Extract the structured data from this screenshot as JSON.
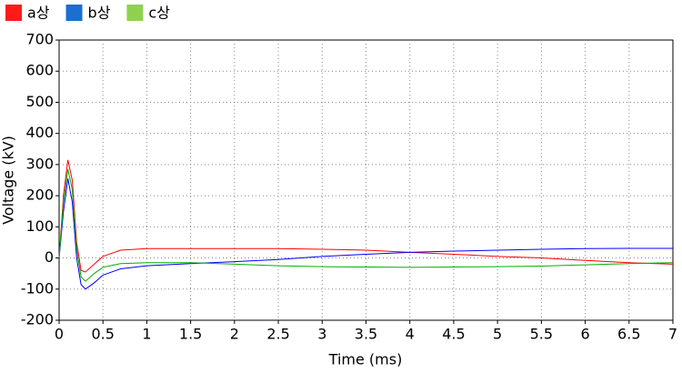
{
  "chart_data": {
    "type": "line",
    "x_label": "Time (ms)",
    "y_label": "Voltage (kV)",
    "x": [
      0,
      0.05,
      0.1,
      0.15,
      0.2,
      0.25,
      0.3,
      0.4,
      0.5,
      0.7,
      1,
      1.5,
      2,
      2.5,
      3,
      3.5,
      4,
      4.5,
      5,
      5.5,
      6,
      6.5,
      7
    ],
    "series": [
      {
        "name": "a상",
        "color": "#ff0000",
        "values": [
          0,
          200,
          315,
          250,
          50,
          -40,
          -45,
          -20,
          5,
          25,
          30,
          30,
          30,
          30,
          28,
          25,
          18,
          12,
          5,
          0,
          -8,
          -15,
          -20
        ]
      },
      {
        "name": "b상",
        "color": "#0000ff",
        "values": [
          0,
          150,
          255,
          180,
          0,
          -85,
          -100,
          -80,
          -55,
          -35,
          -25,
          -18,
          -12,
          -5,
          5,
          12,
          18,
          22,
          25,
          28,
          30,
          31,
          31
        ]
      },
      {
        "name": "c상",
        "color": "#00b000",
        "values": [
          0,
          180,
          285,
          220,
          30,
          -60,
          -75,
          -50,
          -30,
          -18,
          -15,
          -15,
          -20,
          -25,
          -28,
          -29,
          -30,
          -29,
          -28,
          -26,
          -22,
          -18,
          -15
        ]
      }
    ],
    "legend_colors": [
      "#ff1a1a",
      "#1a6fd1",
      "#8fd14f"
    ],
    "xlim": [
      0,
      7
    ],
    "xticks": [
      0,
      0.5,
      1,
      1.5,
      2,
      2.5,
      3,
      3.5,
      4,
      4.5,
      5,
      5.5,
      6,
      6.5,
      7
    ],
    "ylim": [
      -200,
      700
    ],
    "yticks": [
      -200,
      -100,
      0,
      100,
      200,
      300,
      400,
      500,
      600,
      700
    ],
    "grid": true,
    "legend": "top-left"
  }
}
